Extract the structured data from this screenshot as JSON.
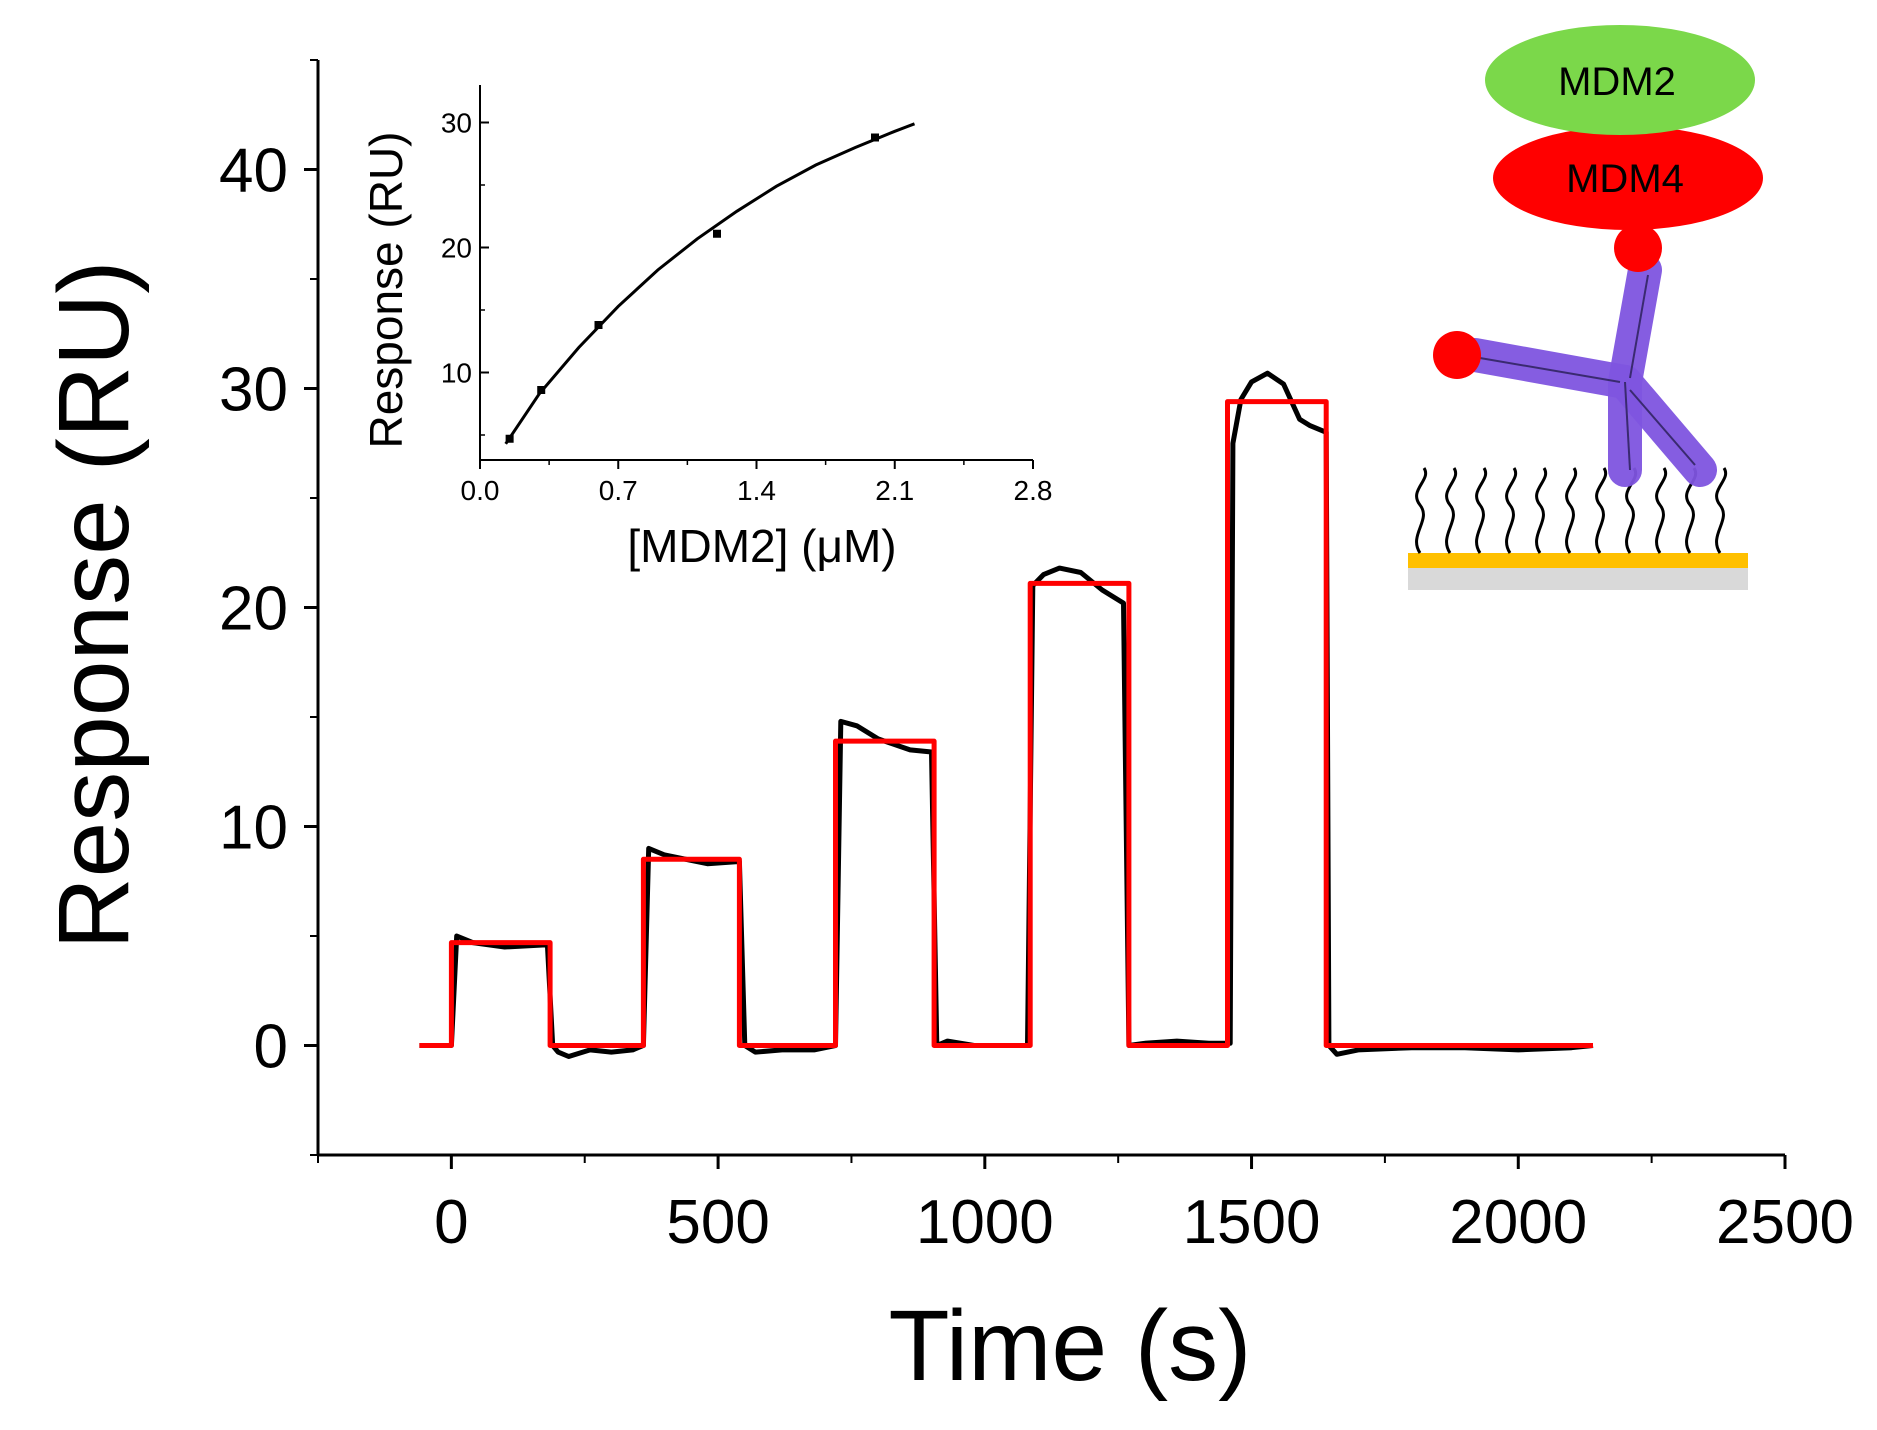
{
  "chart_data": [
    {
      "type": "line",
      "title": "",
      "xlabel": "Time (s)",
      "ylabel": "Response (RU)",
      "xlim": [
        -250,
        2500
      ],
      "ylim": [
        -5,
        45
      ],
      "xticks": [
        0,
        500,
        1000,
        1500,
        2000,
        2500
      ],
      "xtick_labels": [
        "0",
        "500",
        "1000",
        "1500",
        "2000",
        "2500"
      ],
      "yticks": [
        0,
        10,
        20,
        30,
        40
      ],
      "ytick_labels": [
        "0",
        "10",
        "20",
        "30",
        "40"
      ],
      "grid": false,
      "series": [
        {
          "name": "measured response",
          "color": "#000000",
          "x": [
            -60,
            0,
            10,
            40,
            100,
            180,
            190,
            200,
            220,
            260,
            300,
            340,
            360,
            370,
            400,
            480,
            540,
            550,
            570,
            620,
            680,
            720,
            730,
            760,
            800,
            860,
            900,
            910,
            930,
            980,
            1040,
            1080,
            1090,
            1110,
            1140,
            1180,
            1220,
            1260,
            1270,
            1300,
            1360,
            1420,
            1460,
            1465,
            1480,
            1500,
            1530,
            1560,
            1590,
            1610,
            1640,
            1645,
            1660,
            1700,
            1800,
            1900,
            2000,
            2100,
            2140
          ],
          "y": [
            0,
            0,
            5.0,
            4.7,
            4.5,
            4.6,
            0,
            -0.3,
            -0.5,
            -0.2,
            -0.3,
            -0.2,
            0,
            9.0,
            8.7,
            8.3,
            8.4,
            0,
            -0.3,
            -0.2,
            -0.2,
            0,
            14.8,
            14.6,
            14.0,
            13.5,
            13.4,
            0,
            0.2,
            0,
            0,
            0,
            21.0,
            21.5,
            21.8,
            21.6,
            20.8,
            20.2,
            0,
            0.1,
            0.2,
            0.1,
            0.1,
            27.5,
            29.5,
            30.3,
            30.7,
            30.2,
            28.6,
            28.3,
            28.0,
            0,
            -0.4,
            -0.2,
            -0.1,
            -0.1,
            -0.2,
            -0.1,
            0
          ]
        },
        {
          "name": "fit",
          "color": "#ff0000",
          "x": [
            -60,
            0,
            0,
            185,
            185,
            360,
            360,
            540,
            540,
            720,
            720,
            905,
            905,
            1085,
            1085,
            1270,
            1270,
            1455,
            1455,
            1640,
            1640,
            2140
          ],
          "y": [
            0,
            0,
            4.7,
            4.7,
            0,
            0,
            8.5,
            8.5,
            0,
            0,
            13.9,
            13.9,
            0,
            0,
            21.1,
            21.1,
            0,
            0,
            29.4,
            29.4,
            0,
            0
          ]
        }
      ]
    },
    {
      "type": "scatter",
      "title": "",
      "xlabel": "[MDM2] (μM)",
      "ylabel": "Response (RU)",
      "xlim": [
        0.0,
        2.8
      ],
      "ylim": [
        3,
        33
      ],
      "xticks": [
        0.0,
        0.7,
        1.4,
        2.1,
        2.8
      ],
      "xtick_labels": [
        "0.0",
        "0.7",
        "1.4",
        "2.1",
        "2.8"
      ],
      "yticks": [
        10,
        20,
        30
      ],
      "ytick_labels": [
        "10",
        "20",
        "30"
      ],
      "grid": false,
      "points": {
        "x": [
          0.15,
          0.31,
          0.6,
          1.2,
          2.0
        ],
        "y": [
          4.7,
          8.6,
          13.8,
          21.1,
          28.8
        ]
      },
      "fit_curve": {
        "x": [
          0.13,
          0.3,
          0.5,
          0.7,
          0.9,
          1.1,
          1.3,
          1.5,
          1.7,
          1.9,
          2.1,
          2.2
        ],
        "y": [
          4.3,
          8.3,
          12.0,
          15.3,
          18.2,
          20.7,
          22.9,
          24.9,
          26.6,
          28.0,
          29.3,
          29.9
        ]
      }
    }
  ],
  "schematic": {
    "mdm2_label": "MDM2",
    "mdm4_label": "MDM4",
    "mdm2_color": "#7bd84a",
    "mdm4_color": "#ff0000",
    "antibody_color": "#7f55e0",
    "substrate_color": "#ffc000"
  }
}
